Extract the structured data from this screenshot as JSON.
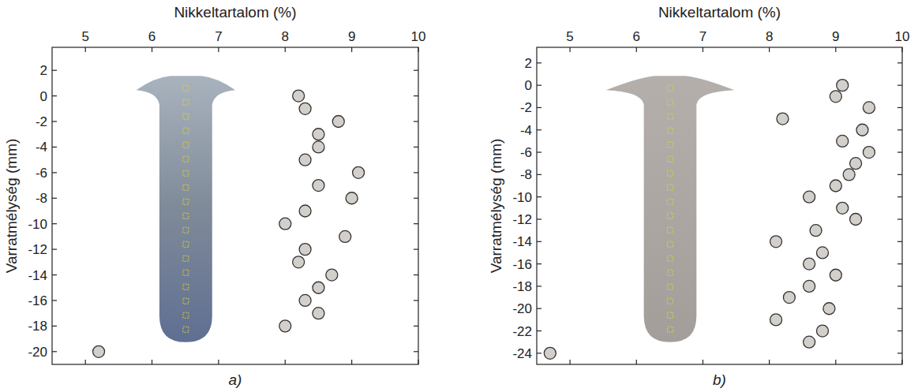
{
  "chart_data": [
    {
      "type": "scatter",
      "title": "a)",
      "x_label": "Nikkeltartalom (%)",
      "y_label": "Varratmélység (mm)",
      "x": [
        8.2,
        8.3,
        8.8,
        8.5,
        8.5,
        8.3,
        9.1,
        8.5,
        9.0,
        8.3,
        8.0,
        8.9,
        8.3,
        8.2,
        8.7,
        8.5,
        8.3,
        8.5,
        8.0,
        5.2
      ],
      "values": [
        0,
        -1,
        -2,
        -3,
        -4,
        -5,
        -6,
        -7,
        -8,
        -9,
        -10,
        -11,
        -12,
        -13,
        -14,
        -15,
        -16,
        -17,
        -18,
        -20
      ],
      "color": "#d3cfcb",
      "marker": "circle",
      "xlim": [
        4.5,
        10
      ],
      "xticks": [
        5,
        6,
        7,
        8,
        9,
        10
      ],
      "ylim": [
        -21,
        3.8
      ],
      "yticks": [
        2,
        0,
        -2,
        -4,
        -6,
        -8,
        -10,
        -12,
        -14,
        -16,
        -18,
        -20
      ],
      "grid": false
    },
    {
      "type": "scatter",
      "title": "b)",
      "x_label": "Nikkeltartalom (%)",
      "y_label": "Varratmélység (mm)",
      "x": [
        9.1,
        9.0,
        9.5,
        8.2,
        9.4,
        9.1,
        9.5,
        9.3,
        9.2,
        9.0,
        8.6,
        9.1,
        9.3,
        8.7,
        8.1,
        8.8,
        8.6,
        9.0,
        8.6,
        8.3,
        8.9,
        8.1,
        8.8,
        8.6,
        4.7
      ],
      "values": [
        0,
        -1,
        -2,
        -3,
        -4,
        -5,
        -6,
        -7,
        -8,
        -9,
        -10,
        -11,
        -12,
        -13,
        -14,
        -15,
        -16,
        -17,
        -18,
        -19,
        -20,
        -21,
        -22,
        -23,
        -24
      ],
      "color": "#d3cfcb",
      "marker": "circle",
      "xlim": [
        4.5,
        10
      ],
      "xticks": [
        5,
        6,
        7,
        8,
        9,
        10
      ],
      "ylim": [
        -25,
        3.4
      ],
      "yticks": [
        2,
        0,
        -2,
        -4,
        -6,
        -8,
        -10,
        -12,
        -14,
        -16,
        -18,
        -20,
        -22,
        -24
      ],
      "grid": false
    }
  ]
}
